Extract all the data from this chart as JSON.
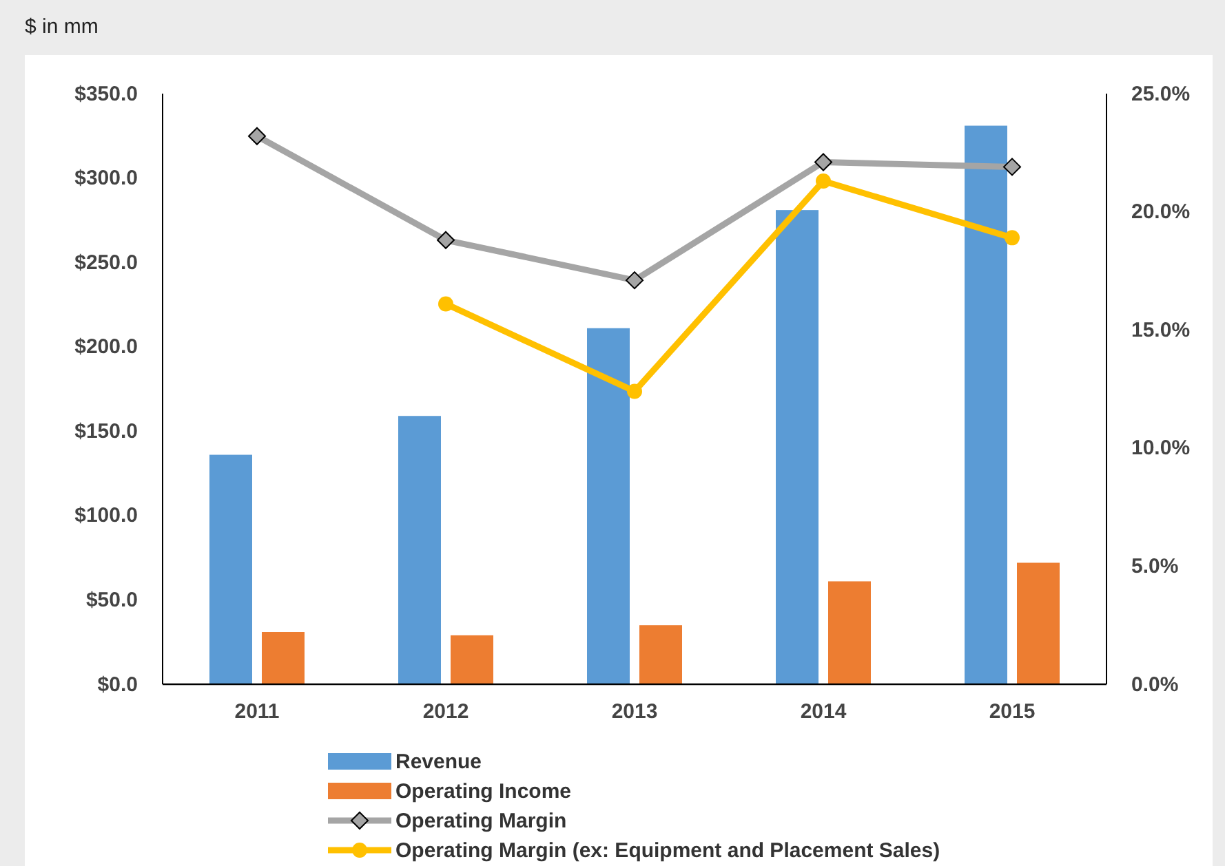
{
  "chart_data": {
    "type": "bar",
    "categories": [
      "2011",
      "2012",
      "2013",
      "2014",
      "2015"
    ],
    "series": [
      {
        "name": "Revenue",
        "color": "#5b9bd5",
        "values": [
          136,
          159,
          211,
          281,
          331
        ]
      },
      {
        "name": "Operating Income",
        "color": "#ed7d31",
        "values": [
          31,
          29,
          35,
          61,
          72
        ]
      },
      {
        "name": "Operating Margin",
        "type": "line",
        "axis": "y2",
        "color": "#a5a5a5",
        "marker": "diamond",
        "values": [
          23.2,
          18.8,
          17.1,
          22.1,
          21.9
        ]
      },
      {
        "name": "Operating Margin (ex: Equipment and Placement Sales)",
        "type": "line",
        "axis": "y2",
        "color": "#ffc000",
        "marker": "circle",
        "values": [
          null,
          16.1,
          12.4,
          21.3,
          18.9
        ]
      }
    ],
    "ylim": [
      0,
      350
    ],
    "yticks": [
      {
        "value": 0,
        "label": "$0.0"
      },
      {
        "value": 50,
        "label": "$50.0"
      },
      {
        "value": 100,
        "label": "$100.0"
      },
      {
        "value": 150,
        "label": "$150.0"
      },
      {
        "value": 200,
        "label": "$200.0"
      },
      {
        "value": 250,
        "label": "$250.0"
      },
      {
        "value": 300,
        "label": "$300.0"
      },
      {
        "value": 350,
        "label": "$350.0"
      }
    ],
    "y2lim": [
      0,
      25
    ],
    "y2ticks": [
      {
        "value": 0,
        "label": "0.0%"
      },
      {
        "value": 5,
        "label": "5.0%"
      },
      {
        "value": 10,
        "label": "10.0%"
      },
      {
        "value": 15,
        "label": "15.0%"
      },
      {
        "value": 20,
        "label": "20.0%"
      },
      {
        "value": 25,
        "label": "25.0%"
      }
    ],
    "annotations": [
      "$ in mm"
    ],
    "grid": false,
    "legend": "bottom"
  }
}
